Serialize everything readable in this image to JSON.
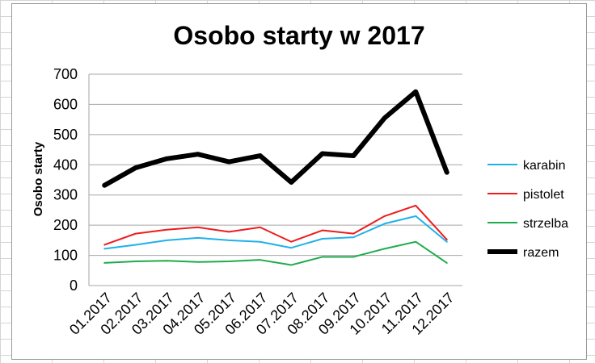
{
  "chart_data": {
    "type": "line",
    "title": "Osobo starty w 2017",
    "ylabel": "Osobo starty",
    "xlabel": "",
    "ylim": [
      0,
      700
    ],
    "yticks": [
      0,
      100,
      200,
      300,
      400,
      500,
      600,
      700
    ],
    "grid": "horizontal",
    "legend_position": "right",
    "categories": [
      "01.2017",
      "02.2017",
      "03.2017",
      "04.2017",
      "05.2017",
      "06.2017",
      "07.2017",
      "08.2017",
      "09.2017",
      "10.2017",
      "11.2017",
      "12.2017"
    ],
    "series": [
      {
        "name": "karabin",
        "color": "#1fb1e9",
        "width": 2,
        "values": [
          122,
          135,
          150,
          158,
          150,
          145,
          125,
          155,
          160,
          205,
          230,
          145
        ]
      },
      {
        "name": "pistolet",
        "color": "#ee1c1c",
        "width": 2,
        "values": [
          135,
          172,
          185,
          193,
          178,
          193,
          145,
          183,
          172,
          230,
          265,
          152
        ]
      },
      {
        "name": "strzelba",
        "color": "#1eab4b",
        "width": 2,
        "values": [
          75,
          80,
          82,
          78,
          80,
          85,
          68,
          95,
          95,
          122,
          145,
          75
        ]
      },
      {
        "name": "razem",
        "color": "#000000",
        "width": 6,
        "values": [
          332,
          390,
          420,
          435,
          410,
          430,
          342,
          437,
          430,
          555,
          642,
          375
        ]
      }
    ]
  }
}
